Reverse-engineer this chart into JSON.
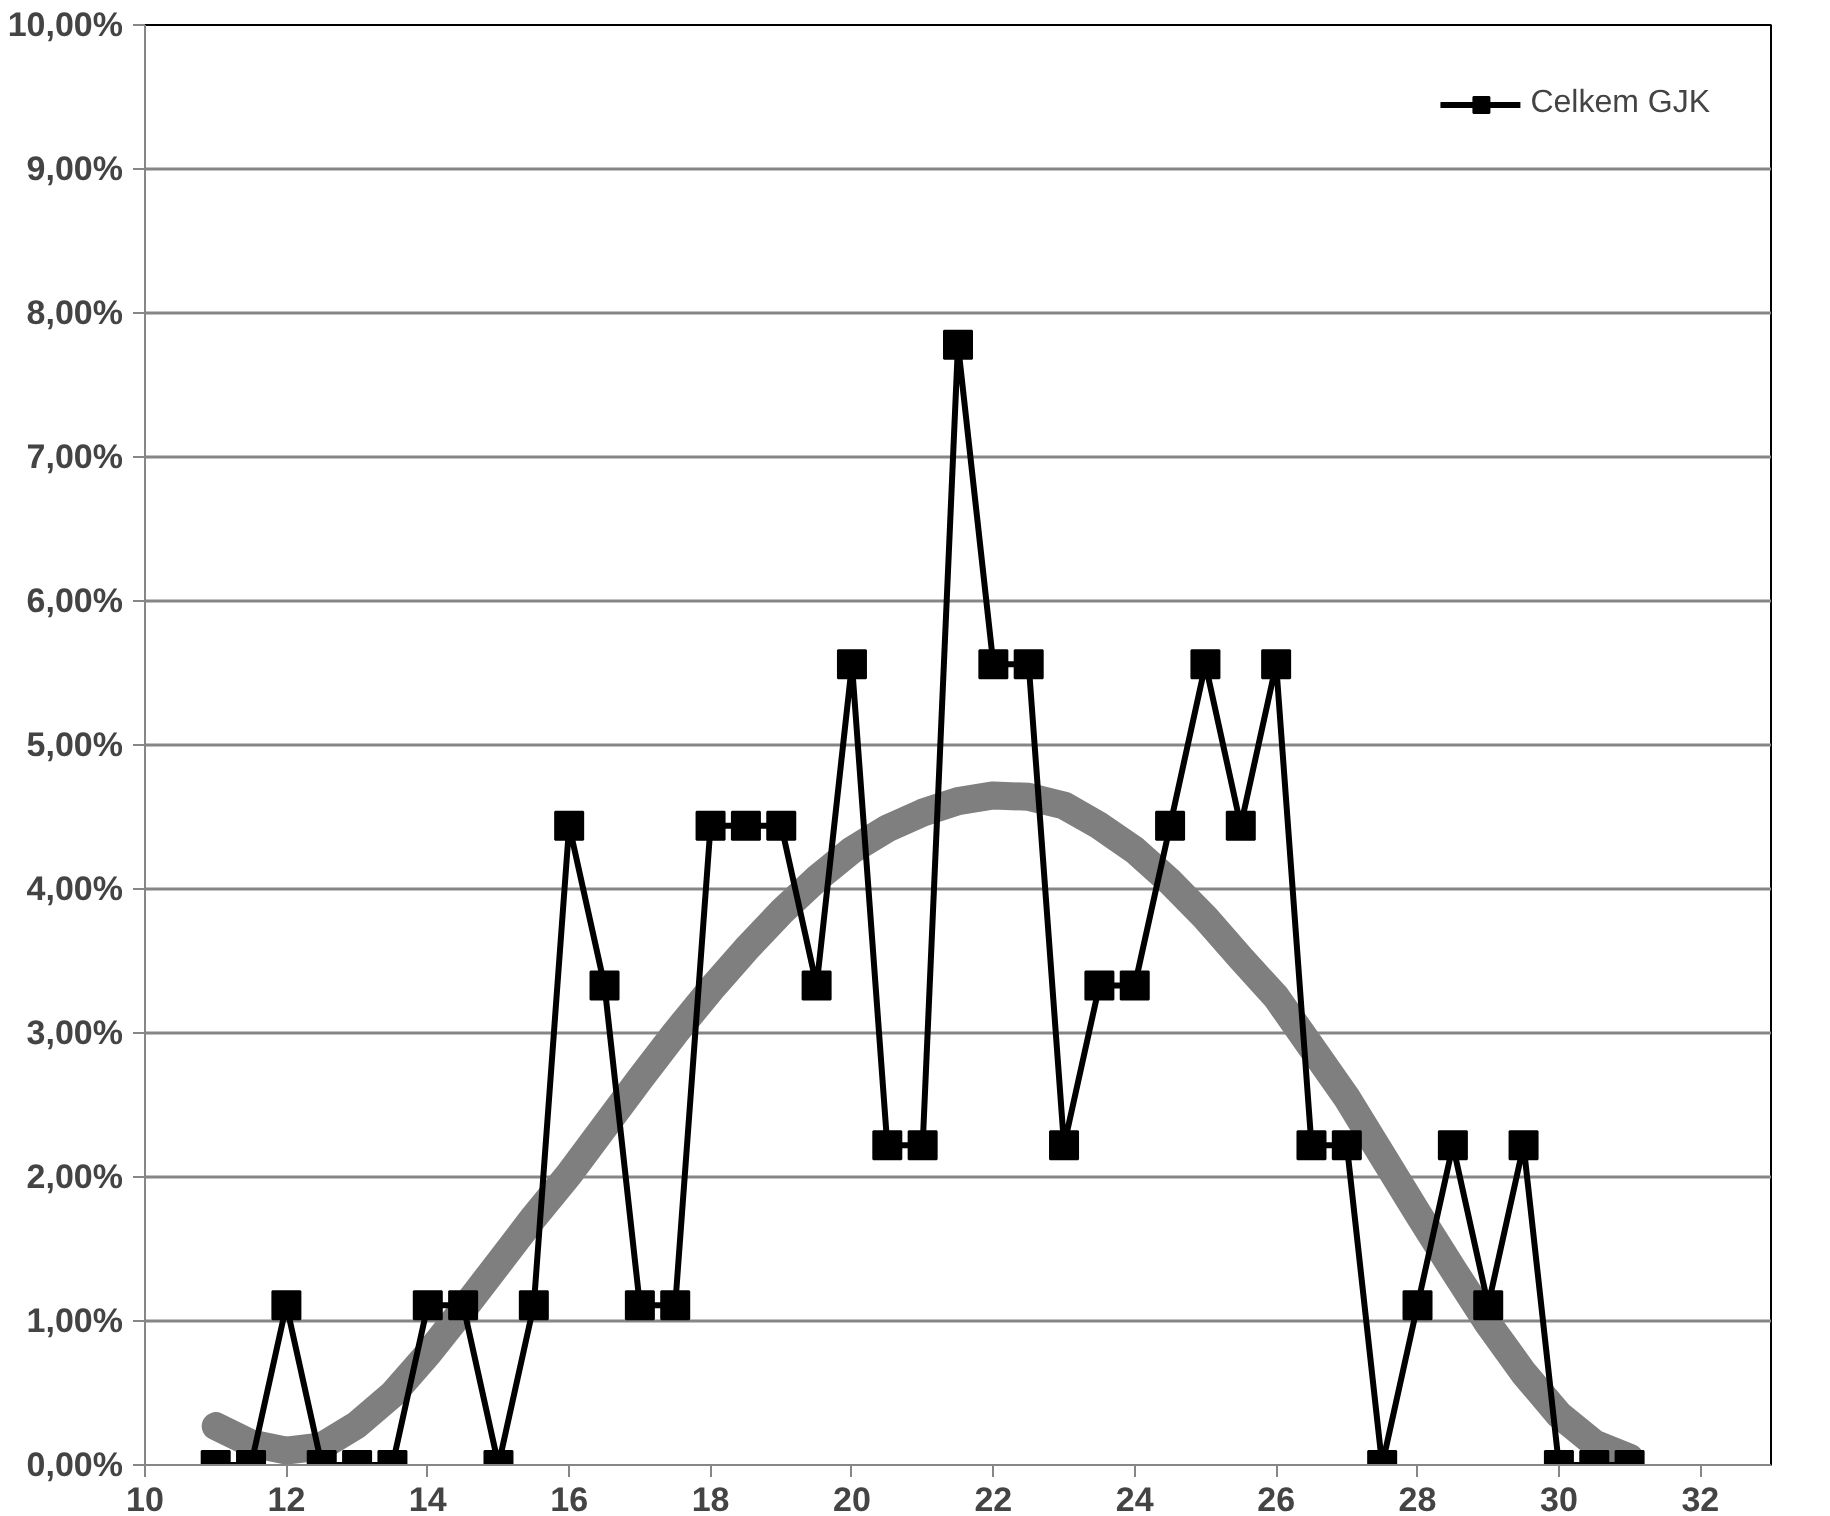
{
  "chart_data": {
    "type": "line",
    "x": [
      11,
      11.5,
      12,
      12.5,
      13,
      13.5,
      14,
      14.5,
      15,
      15.5,
      16,
      16.5,
      17,
      17.5,
      18,
      18.5,
      19,
      19.5,
      20,
      20.5,
      21,
      21.5,
      22,
      22.5,
      23,
      23.5,
      24,
      24.5,
      25,
      25.5,
      26,
      26.5,
      27,
      27.5,
      28,
      28.5,
      29,
      29.5,
      30,
      30.5,
      31
    ],
    "series": [
      {
        "name": null,
        "color": "#7f7f7f",
        "marker": "none",
        "values": [
          0.27,
          0.15,
          0.1,
          0.13,
          0.28,
          0.49,
          0.77,
          1.08,
          1.4,
          1.72,
          2.02,
          2.35,
          2.68,
          3.0,
          3.3,
          3.58,
          3.84,
          4.07,
          4.27,
          4.42,
          4.53,
          4.61,
          4.65,
          4.64,
          4.58,
          4.44,
          4.27,
          4.05,
          3.8,
          3.52,
          3.25,
          2.9,
          2.55,
          2.15,
          1.75,
          1.36,
          0.98,
          0.64,
          0.35,
          0.15,
          0.05
        ]
      },
      {
        "name": "Celkem GJK",
        "color": "#000000",
        "marker": "square",
        "values": [
          0,
          0,
          1.11,
          0,
          0,
          0,
          1.11,
          1.11,
          0,
          1.11,
          4.44,
          3.33,
          1.11,
          1.11,
          4.44,
          4.44,
          4.44,
          3.33,
          5.56,
          2.22,
          2.22,
          7.78,
          5.56,
          5.56,
          2.22,
          3.33,
          3.33,
          4.44,
          5.56,
          4.44,
          5.56,
          2.22,
          2.22,
          0,
          1.11,
          2.22,
          1.11,
          2.22,
          0,
          0,
          0
        ]
      }
    ],
    "xlim": [
      10,
      33
    ],
    "xticks": [
      10,
      12,
      14,
      16,
      18,
      20,
      22,
      24,
      26,
      28,
      30,
      32
    ],
    "ylim": [
      0,
      10
    ],
    "yticks": [
      {
        "value": 0,
        "label": "0,00%"
      },
      {
        "value": 1,
        "label": "1,00%"
      },
      {
        "value": 2,
        "label": "2,00%"
      },
      {
        "value": 3,
        "label": "3,00%"
      },
      {
        "value": 4,
        "label": "4,00%"
      },
      {
        "value": 5,
        "label": "5,00%"
      },
      {
        "value": 6,
        "label": "6,00%"
      },
      {
        "value": 7,
        "label": "7,00%"
      },
      {
        "value": 8,
        "label": "8,00%"
      },
      {
        "value": 9,
        "label": "9,00%"
      },
      {
        "value": 10,
        "label": "10,00%"
      }
    ],
    "grid": "y",
    "legend": "top right"
  }
}
